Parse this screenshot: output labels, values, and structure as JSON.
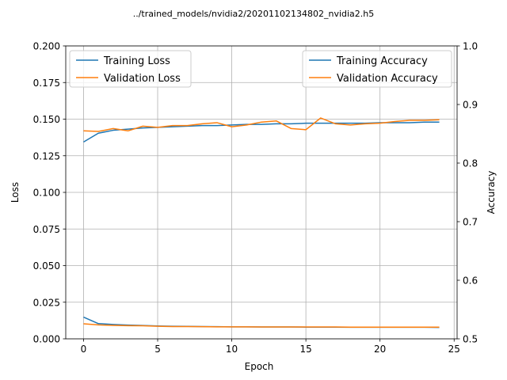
{
  "chart_data": {
    "type": "line",
    "title": "../trained_models/nvidia2/20201102134802_nvidia2.h5",
    "xlabel": "Epoch",
    "ylabel_left": "Loss",
    "ylabel_right": "Accuracy",
    "xlim": [
      -1.2,
      25.2
    ],
    "ylim_left": [
      0,
      0.2
    ],
    "ylim_right": [
      0.5,
      1.0
    ],
    "x_ticks": [
      "0",
      "5",
      "10",
      "15",
      "20",
      "25"
    ],
    "y_left_ticks": [
      "0.000",
      "0.025",
      "0.050",
      "0.075",
      "0.100",
      "0.125",
      "0.150",
      "0.175",
      "0.200"
    ],
    "y_right_ticks": [
      "0.5",
      "0.6",
      "0.7",
      "0.8",
      "0.9",
      "1.0"
    ],
    "grid": true,
    "legend_left_position": "top-left",
    "legend_right_position": "top-right",
    "x": [
      0,
      1,
      2,
      3,
      4,
      5,
      6,
      7,
      8,
      9,
      10,
      11,
      12,
      13,
      14,
      15,
      16,
      17,
      18,
      19,
      20,
      21,
      22,
      23,
      24
    ],
    "loss_series": [
      {
        "name": "Training Loss",
        "color": "#1f77b4",
        "values": [
          0.0148,
          0.0104,
          0.0098,
          0.0094,
          0.0091,
          0.0088,
          0.0086,
          0.0085,
          0.0084,
          0.0083,
          0.0082,
          0.0082,
          0.0081,
          0.0081,
          0.0081,
          0.008,
          0.008,
          0.008,
          0.0079,
          0.0079,
          0.0079,
          0.0079,
          0.0079,
          0.0079,
          0.0078
        ]
      },
      {
        "name": "Validation Loss",
        "color": "#ff7f0e",
        "values": [
          0.0103,
          0.0095,
          0.0092,
          0.009,
          0.0089,
          0.0086,
          0.0084,
          0.0084,
          0.0083,
          0.0082,
          0.0082,
          0.0082,
          0.0081,
          0.0081,
          0.0081,
          0.0081,
          0.0081,
          0.0081,
          0.008,
          0.008,
          0.008,
          0.008,
          0.008,
          0.008,
          0.008
        ]
      }
    ],
    "accuracy_series": [
      {
        "name": "Training Accuracy",
        "color": "#1f77b4",
        "values": [
          0.836,
          0.851,
          0.856,
          0.858,
          0.86,
          0.861,
          0.862,
          0.863,
          0.864,
          0.864,
          0.865,
          0.866,
          0.866,
          0.867,
          0.867,
          0.868,
          0.868,
          0.868,
          0.868,
          0.868,
          0.869,
          0.869,
          0.869,
          0.87,
          0.87
        ]
      },
      {
        "name": "Validation Accuracy",
        "color": "#ff7f0e",
        "values": [
          0.855,
          0.854,
          0.859,
          0.855,
          0.863,
          0.861,
          0.864,
          0.864,
          0.867,
          0.869,
          0.862,
          0.865,
          0.87,
          0.872,
          0.859,
          0.857,
          0.877,
          0.867,
          0.865,
          0.867,
          0.868,
          0.871,
          0.873,
          0.873,
          0.874
        ]
      }
    ]
  }
}
